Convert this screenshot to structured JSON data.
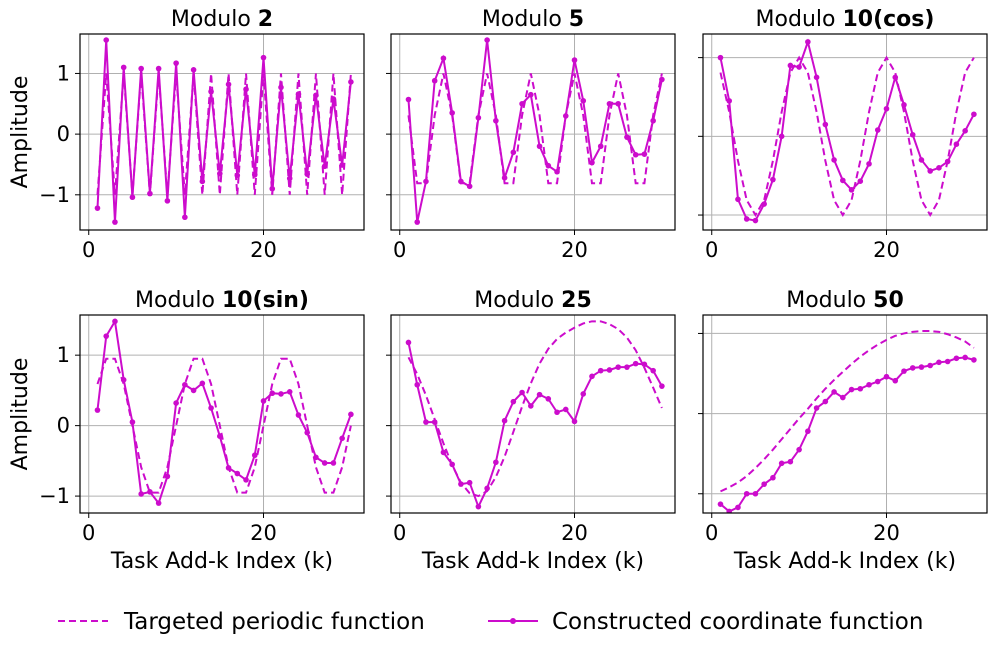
{
  "chart_data": [
    {
      "type": "line",
      "title_prefix": "Modulo ",
      "title_bold": "2",
      "xlim": [
        -1,
        31.5
      ],
      "ylim": [
        -1.58,
        1.65
      ],
      "xticks": [
        0,
        20
      ],
      "yticks": [
        -1,
        0,
        1
      ],
      "ytick_labels": [
        "−1",
        "0",
        "1"
      ],
      "ylabel": "Amplitude",
      "xlabel": "",
      "series": [
        {
          "name": "Targeted periodic function",
          "style": "dashed",
          "x": [
            1,
            2,
            3,
            4,
            5,
            6,
            7,
            8,
            9,
            10,
            11,
            12,
            13,
            14,
            15,
            16,
            17,
            18,
            19,
            20,
            21,
            22,
            23,
            24,
            25,
            26,
            27,
            28,
            29,
            30
          ],
          "y": [
            -1,
            1,
            -1,
            1,
            -1,
            1,
            -1,
            1,
            -1,
            1,
            -1,
            1,
            -1,
            1,
            -1,
            1,
            -1,
            1,
            -1,
            1,
            -1,
            1,
            -1,
            1,
            -1,
            1,
            -1,
            1,
            -1,
            1
          ]
        },
        {
          "name": "Constructed coordinate function",
          "style": "solid-marker",
          "x": [
            1,
            2,
            3,
            4,
            5,
            6,
            7,
            8,
            9,
            10,
            11,
            12,
            13,
            14,
            15,
            16,
            17,
            18,
            19,
            20,
            21,
            22,
            23,
            24,
            25,
            26,
            27,
            28,
            29,
            30
          ],
          "y": [
            -1.22,
            1.55,
            -1.45,
            1.1,
            -1.04,
            1.08,
            -0.98,
            1.08,
            -1.1,
            1.17,
            -1.37,
            1.06,
            -0.78,
            0.7,
            -0.65,
            0.82,
            -0.68,
            0.74,
            -0.67,
            1.26,
            -0.9,
            0.77,
            -0.73,
            0.66,
            -0.66,
            0.64,
            -0.53,
            0.58,
            -0.51,
            0.86
          ]
        }
      ]
    },
    {
      "type": "line",
      "title_prefix": "Modulo ",
      "title_bold": "5",
      "xlim": [
        -1,
        31.5
      ],
      "ylim": [
        -1.58,
        1.65
      ],
      "xticks": [
        0,
        20
      ],
      "yticks": [
        -1,
        0,
        1
      ],
      "ytick_labels": [
        "",
        "",
        ""
      ],
      "ylabel": "",
      "xlabel": "",
      "series": [
        {
          "name": "Targeted periodic function",
          "style": "dashed",
          "x": [
            1,
            2,
            3,
            4,
            5,
            6,
            7,
            8,
            9,
            10,
            11,
            12,
            13,
            14,
            15,
            16,
            17,
            18,
            19,
            20,
            21,
            22,
            23,
            24,
            25,
            26,
            27,
            28,
            29,
            30
          ],
          "y": [
            0.31,
            -0.81,
            -0.81,
            0.31,
            1.0,
            0.31,
            -0.81,
            -0.81,
            0.31,
            1.0,
            0.31,
            -0.81,
            -0.81,
            0.31,
            1.0,
            0.31,
            -0.81,
            -0.81,
            0.31,
            1.0,
            0.31,
            -0.81,
            -0.81,
            0.31,
            1.0,
            0.31,
            -0.81,
            -0.81,
            0.31,
            1.0
          ]
        },
        {
          "name": "Constructed coordinate function",
          "style": "solid-marker",
          "x": [
            1,
            2,
            3,
            4,
            5,
            6,
            7,
            8,
            9,
            10,
            11,
            12,
            13,
            14,
            15,
            16,
            17,
            18,
            19,
            20,
            21,
            22,
            23,
            24,
            25,
            26,
            27,
            28,
            29,
            30
          ],
          "y": [
            0.57,
            -1.45,
            -0.78,
            0.88,
            1.25,
            0.35,
            -0.78,
            -0.86,
            0.27,
            1.55,
            0.22,
            -0.72,
            -0.3,
            0.5,
            0.65,
            -0.2,
            -0.52,
            -0.62,
            0.3,
            1.22,
            0.55,
            -0.47,
            -0.2,
            0.5,
            0.5,
            -0.05,
            -0.34,
            -0.33,
            0.22,
            0.9
          ]
        }
      ]
    },
    {
      "type": "line",
      "title_prefix": "Modulo ",
      "title_bold": "10(cos)",
      "xlim": [
        -1,
        31.5
      ],
      "ylim": [
        -1.19,
        1.3
      ],
      "xticks": [
        0,
        20
      ],
      "yticks": [
        -1,
        0,
        1
      ],
      "ytick_labels": [
        "",
        "",
        ""
      ],
      "ylabel": "",
      "xlabel": "",
      "series": [
        {
          "name": "Targeted periodic function",
          "style": "dashed",
          "x": [
            1,
            2,
            3,
            4,
            5,
            6,
            7,
            8,
            9,
            10,
            11,
            12,
            13,
            14,
            15,
            16,
            17,
            18,
            19,
            20,
            21,
            22,
            23,
            24,
            25,
            26,
            27,
            28,
            29,
            30
          ],
          "y": [
            0.81,
            0.31,
            -0.31,
            -0.81,
            -1.0,
            -0.81,
            -0.31,
            0.31,
            0.81,
            1.0,
            0.81,
            0.31,
            -0.31,
            -0.81,
            -1.0,
            -0.81,
            -0.31,
            0.31,
            0.81,
            1.0,
            0.81,
            0.31,
            -0.31,
            -0.81,
            -1.0,
            -0.81,
            -0.31,
            0.31,
            0.81,
            1.0
          ]
        },
        {
          "name": "Constructed coordinate function",
          "style": "solid-marker",
          "x": [
            1,
            2,
            3,
            4,
            5,
            6,
            7,
            8,
            9,
            10,
            11,
            12,
            13,
            14,
            15,
            16,
            17,
            18,
            19,
            20,
            21,
            22,
            23,
            24,
            25,
            26,
            27,
            28,
            29,
            30
          ],
          "y": [
            1.0,
            0.45,
            -0.8,
            -1.05,
            -1.07,
            -0.86,
            -0.55,
            0.0,
            0.9,
            0.88,
            1.2,
            0.75,
            0.15,
            -0.3,
            -0.56,
            -0.68,
            -0.57,
            -0.35,
            0.08,
            0.35,
            0.75,
            0.4,
            0.02,
            -0.3,
            -0.44,
            -0.4,
            -0.32,
            -0.1,
            0.07,
            0.28
          ]
        }
      ]
    },
    {
      "type": "line",
      "title_prefix": "Modulo ",
      "title_bold": "10(sin)",
      "xlim": [
        -1,
        31.5
      ],
      "ylim": [
        -1.24,
        1.57
      ],
      "xticks": [
        0,
        20
      ],
      "yticks": [
        -1,
        0,
        1
      ],
      "ytick_labels": [
        "−1",
        "0",
        "1"
      ],
      "ylabel": "Amplitude",
      "xlabel": "Task Add-k Index (k)",
      "series": [
        {
          "name": "Targeted periodic function",
          "style": "dashed",
          "x": [
            1,
            2,
            3,
            4,
            5,
            6,
            7,
            8,
            9,
            10,
            11,
            12,
            13,
            14,
            15,
            16,
            17,
            18,
            19,
            20,
            21,
            22,
            23,
            24,
            25,
            26,
            27,
            28,
            29,
            30
          ],
          "y": [
            0.59,
            0.95,
            0.95,
            0.59,
            0.0,
            -0.59,
            -0.95,
            -0.95,
            -0.59,
            0.0,
            0.59,
            0.95,
            0.95,
            0.59,
            0.0,
            -0.59,
            -0.95,
            -0.95,
            -0.59,
            0.0,
            0.59,
            0.95,
            0.95,
            0.59,
            0.0,
            -0.59,
            -0.95,
            -0.95,
            -0.59,
            0.0
          ]
        },
        {
          "name": "Constructed coordinate function",
          "style": "solid-marker",
          "x": [
            1,
            2,
            3,
            4,
            5,
            6,
            7,
            8,
            9,
            10,
            11,
            12,
            13,
            14,
            15,
            16,
            17,
            18,
            19,
            20,
            21,
            22,
            23,
            24,
            25,
            26,
            27,
            28,
            29,
            30
          ],
          "y": [
            0.22,
            1.27,
            1.48,
            0.65,
            0.05,
            -0.97,
            -0.94,
            -1.1,
            -0.72,
            0.32,
            0.58,
            0.5,
            0.6,
            0.25,
            -0.15,
            -0.6,
            -0.68,
            -0.77,
            -0.42,
            0.35,
            0.46,
            0.45,
            0.48,
            0.15,
            -0.1,
            -0.45,
            -0.53,
            -0.53,
            -0.18,
            0.16
          ]
        }
      ]
    },
    {
      "type": "line",
      "title_prefix": "Modulo ",
      "title_bold": "25",
      "xlim": [
        -1,
        31.5
      ],
      "ylim": [
        -1.24,
        1.57
      ],
      "xticks": [
        0,
        20
      ],
      "yticks": [
        -1,
        0,
        1
      ],
      "ytick_labels": [
        "",
        "",
        ""
      ],
      "ylabel": "",
      "xlabel": "Task Add-k Index (k)",
      "series": [
        {
          "name": "Targeted periodic function",
          "style": "dashed",
          "x": [
            1,
            2,
            3,
            4,
            5,
            6,
            7,
            8,
            9,
            10,
            11,
            12,
            13,
            14,
            15,
            16,
            17,
            18,
            19,
            20,
            21,
            22,
            23,
            24,
            25,
            26,
            27,
            28,
            29,
            30
          ],
          "y": [
            0.97,
            0.73,
            0.43,
            0.09,
            -0.25,
            -0.56,
            -0.81,
            -0.96,
            -1.0,
            -0.93,
            -0.73,
            -0.44,
            -0.09,
            0.27,
            0.6,
            0.88,
            1.09,
            1.23,
            1.32,
            1.39,
            1.45,
            1.48,
            1.48,
            1.44,
            1.37,
            1.25,
            1.07,
            0.82,
            0.54,
            0.25
          ]
        },
        {
          "name": "Constructed coordinate function",
          "style": "solid-marker",
          "x": [
            1,
            2,
            3,
            4,
            5,
            6,
            7,
            8,
            9,
            10,
            11,
            12,
            13,
            14,
            15,
            16,
            17,
            18,
            19,
            20,
            21,
            22,
            23,
            24,
            25,
            26,
            27,
            28,
            29,
            30
          ],
          "y": [
            1.18,
            0.58,
            0.05,
            0.05,
            -0.38,
            -0.55,
            -0.83,
            -0.81,
            -1.15,
            -0.89,
            -0.52,
            0.07,
            0.34,
            0.47,
            0.28,
            0.44,
            0.38,
            0.19,
            0.23,
            0.06,
            0.45,
            0.7,
            0.78,
            0.79,
            0.83,
            0.83,
            0.88,
            0.87,
            0.78,
            0.56
          ]
        }
      ]
    },
    {
      "type": "line",
      "title_prefix": "Modulo ",
      "title_bold": "50",
      "xlim": [
        -1,
        31.5
      ],
      "ylim": [
        -1.24,
        1.23
      ],
      "xticks": [
        0,
        20
      ],
      "yticks": [
        -1,
        0,
        1
      ],
      "ytick_labels": [
        "",
        "",
        ""
      ],
      "ylabel": "",
      "xlabel": "Task Add-k Index (k)",
      "series": [
        {
          "name": "Targeted periodic function",
          "style": "dashed",
          "x": [
            1,
            2,
            3,
            4,
            5,
            6,
            7,
            8,
            9,
            10,
            11,
            12,
            13,
            14,
            15,
            16,
            17,
            18,
            19,
            20,
            21,
            22,
            23,
            24,
            25,
            26,
            27,
            28,
            29,
            30
          ],
          "y": [
            -0.97,
            -0.92,
            -0.86,
            -0.78,
            -0.68,
            -0.57,
            -0.45,
            -0.32,
            -0.19,
            -0.06,
            0.06,
            0.19,
            0.31,
            0.42,
            0.52,
            0.62,
            0.71,
            0.79,
            0.86,
            0.92,
            0.97,
            1.0,
            1.02,
            1.03,
            1.03,
            1.02,
            0.99,
            0.95,
            0.9,
            0.82
          ]
        },
        {
          "name": "Constructed coordinate function",
          "style": "solid-marker",
          "x": [
            1,
            2,
            3,
            4,
            5,
            6,
            7,
            8,
            9,
            10,
            11,
            12,
            13,
            14,
            15,
            16,
            17,
            18,
            19,
            20,
            21,
            22,
            23,
            24,
            25,
            26,
            27,
            28,
            29,
            30
          ],
          "y": [
            -1.13,
            -1.22,
            -1.17,
            -1.0,
            -1.0,
            -0.88,
            -0.8,
            -0.62,
            -0.6,
            -0.45,
            -0.22,
            0.07,
            0.15,
            0.27,
            0.2,
            0.3,
            0.31,
            0.36,
            0.4,
            0.46,
            0.41,
            0.53,
            0.57,
            0.58,
            0.6,
            0.64,
            0.65,
            0.69,
            0.7,
            0.67
          ]
        }
      ]
    }
  ],
  "legend": {
    "dashed_label": "Targeted periodic function",
    "solid_label": "Constructed coordinate function"
  },
  "colors": {
    "line": "#cc0ccc",
    "grid": "#b0b0b0",
    "axis": "#000000"
  }
}
